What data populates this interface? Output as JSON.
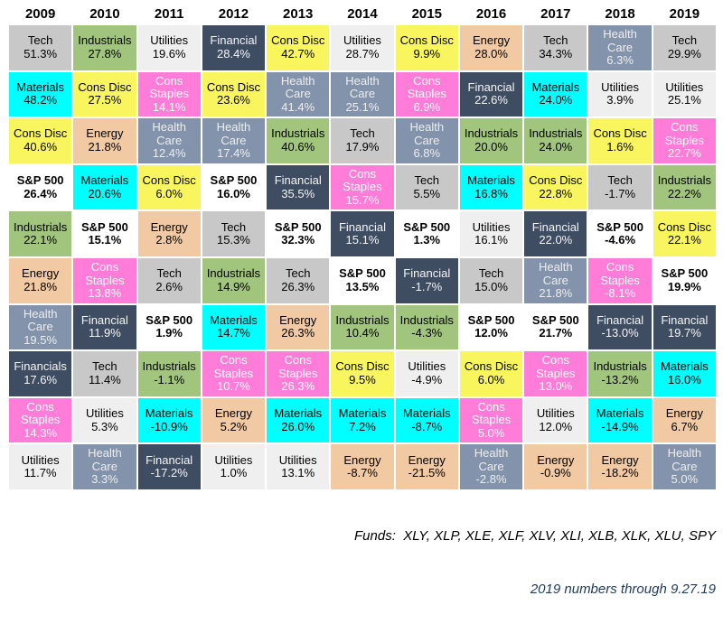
{
  "chart_data": {
    "type": "table",
    "title": "Annual S&P sector returns quilt, 2009-2019",
    "legend_position": "none",
    "years": [
      "2009",
      "2010",
      "2011",
      "2012",
      "2013",
      "2014",
      "2015",
      "2016",
      "2017",
      "2018",
      "2019"
    ],
    "rows": [
      [
        {
          "name": "Tech",
          "value": 51.3,
          "key": "tech"
        },
        {
          "name": "Industrials",
          "value": 27.8,
          "key": "industrials"
        },
        {
          "name": "Utilities",
          "value": 19.6,
          "key": "utilities"
        },
        {
          "name": "Financial",
          "value": 28.4,
          "key": "financial"
        },
        {
          "name": "Cons Disc",
          "value": 42.7,
          "key": "cons_disc"
        },
        {
          "name": "Utilities",
          "value": 28.7,
          "key": "utilities"
        },
        {
          "name": "Cons Disc",
          "value": 9.9,
          "key": "cons_disc"
        },
        {
          "name": "Energy",
          "value": 28.0,
          "key": "energy"
        },
        {
          "name": "Tech",
          "value": 34.3,
          "key": "tech"
        },
        {
          "name": "Health Care",
          "value": 6.3,
          "key": "health_care"
        },
        {
          "name": "Tech",
          "value": 29.9,
          "key": "tech"
        }
      ],
      [
        {
          "name": "Materials",
          "value": 48.2,
          "key": "materials"
        },
        {
          "name": "Cons Disc",
          "value": 27.5,
          "key": "cons_disc"
        },
        {
          "name": "Cons Staples",
          "value": 14.1,
          "key": "cons_staples"
        },
        {
          "name": "Cons Disc",
          "value": 23.6,
          "key": "cons_disc"
        },
        {
          "name": "Health Care",
          "value": 41.4,
          "key": "health_care"
        },
        {
          "name": "Health Care",
          "value": 25.1,
          "key": "health_care"
        },
        {
          "name": "Cons Staples",
          "value": 6.9,
          "key": "cons_staples"
        },
        {
          "name": "Financial",
          "value": 22.6,
          "key": "financial"
        },
        {
          "name": "Materials",
          "value": 24.0,
          "key": "materials"
        },
        {
          "name": "Utilities",
          "value": 3.9,
          "key": "utilities"
        },
        {
          "name": "Utilities",
          "value": 25.1,
          "key": "utilities"
        }
      ],
      [
        {
          "name": "Cons Disc",
          "value": 40.6,
          "key": "cons_disc"
        },
        {
          "name": "Energy",
          "value": 21.8,
          "key": "energy"
        },
        {
          "name": "Health Care",
          "value": 12.4,
          "key": "health_care"
        },
        {
          "name": "Health Care",
          "value": 17.4,
          "key": "health_care"
        },
        {
          "name": "Industrials",
          "value": 40.6,
          "key": "industrials"
        },
        {
          "name": "Tech",
          "value": 17.9,
          "key": "tech"
        },
        {
          "name": "Health Care",
          "value": 6.8,
          "key": "health_care"
        },
        {
          "name": "Industrials",
          "value": 20.0,
          "key": "industrials"
        },
        {
          "name": "Industrials",
          "value": 24.0,
          "key": "industrials"
        },
        {
          "name": "Cons Disc",
          "value": 1.6,
          "key": "cons_disc"
        },
        {
          "name": "Cons Staples",
          "value": 22.7,
          "key": "cons_staples"
        }
      ],
      [
        {
          "name": "S&P 500",
          "value": 26.4,
          "key": "sp500"
        },
        {
          "name": "Materials",
          "value": 20.6,
          "key": "materials"
        },
        {
          "name": "Cons Disc",
          "value": 6.0,
          "key": "cons_disc"
        },
        {
          "name": "S&P 500",
          "value": 16.0,
          "key": "sp500"
        },
        {
          "name": "Financial",
          "value": 35.5,
          "key": "financial"
        },
        {
          "name": "Cons Staples",
          "value": 15.7,
          "key": "cons_staples"
        },
        {
          "name": "Tech",
          "value": 5.5,
          "key": "tech"
        },
        {
          "name": "Materials",
          "value": 16.8,
          "key": "materials"
        },
        {
          "name": "Cons Disc",
          "value": 22.8,
          "key": "cons_disc"
        },
        {
          "name": "Tech",
          "value": -1.7,
          "key": "tech"
        },
        {
          "name": "Industrials",
          "value": 22.2,
          "key": "industrials"
        }
      ],
      [
        {
          "name": "Industrials",
          "value": 22.1,
          "key": "industrials"
        },
        {
          "name": "S&P 500",
          "value": 15.1,
          "key": "sp500"
        },
        {
          "name": "Energy",
          "value": 2.8,
          "key": "energy"
        },
        {
          "name": "Tech",
          "value": 15.3,
          "key": "tech"
        },
        {
          "name": "S&P 500",
          "value": 32.3,
          "key": "sp500"
        },
        {
          "name": "Financial",
          "value": 15.1,
          "key": "financial"
        },
        {
          "name": "S&P 500",
          "value": 1.3,
          "key": "sp500"
        },
        {
          "name": "Utilities",
          "value": 16.1,
          "key": "utilities"
        },
        {
          "name": "Financial",
          "value": 22.0,
          "key": "financial"
        },
        {
          "name": "S&P 500",
          "value": -4.6,
          "key": "sp500"
        },
        {
          "name": "Cons Disc",
          "value": 22.1,
          "key": "cons_disc"
        }
      ],
      [
        {
          "name": "Energy",
          "value": 21.8,
          "key": "energy"
        },
        {
          "name": "Cons Staples",
          "value": 13.8,
          "key": "cons_staples"
        },
        {
          "name": "Tech",
          "value": 2.6,
          "key": "tech"
        },
        {
          "name": "Industrials",
          "value": 14.9,
          "key": "industrials"
        },
        {
          "name": "Tech",
          "value": 26.3,
          "key": "tech"
        },
        {
          "name": "S&P 500",
          "value": 13.5,
          "key": "sp500"
        },
        {
          "name": "Financial",
          "value": -1.7,
          "key": "financial"
        },
        {
          "name": "Tech",
          "value": 15.0,
          "key": "tech"
        },
        {
          "name": "Health Care",
          "value": 21.8,
          "key": "health_care"
        },
        {
          "name": "Cons Staples",
          "value": -8.1,
          "key": "cons_staples"
        },
        {
          "name": "S&P 500",
          "value": 19.9,
          "key": "sp500"
        }
      ],
      [
        {
          "name": "Health Care",
          "value": 19.5,
          "key": "health_care"
        },
        {
          "name": "Financial",
          "value": 11.9,
          "key": "financial"
        },
        {
          "name": "S&P 500",
          "value": 1.9,
          "key": "sp500"
        },
        {
          "name": "Materials",
          "value": 14.7,
          "key": "materials"
        },
        {
          "name": "Energy",
          "value": 26.3,
          "key": "energy"
        },
        {
          "name": "Industrials",
          "value": 10.4,
          "key": "industrials"
        },
        {
          "name": "Industrials",
          "value": -4.3,
          "key": "industrials"
        },
        {
          "name": "S&P 500",
          "value": 12.0,
          "key": "sp500"
        },
        {
          "name": "S&P 500",
          "value": 21.7,
          "key": "sp500"
        },
        {
          "name": "Financial",
          "value": -13.0,
          "key": "financial"
        },
        {
          "name": "Financial",
          "value": 19.7,
          "key": "financial"
        }
      ],
      [
        {
          "name": "Financials",
          "value": 17.6,
          "key": "financial"
        },
        {
          "name": "Tech",
          "value": 11.4,
          "key": "tech"
        },
        {
          "name": "Industrials",
          "value": -1.1,
          "key": "industrials"
        },
        {
          "name": "Cons Staples",
          "value": 10.7,
          "key": "cons_staples"
        },
        {
          "name": "Cons Staples",
          "value": 26.3,
          "key": "cons_staples"
        },
        {
          "name": "Cons Disc",
          "value": 9.5,
          "key": "cons_disc"
        },
        {
          "name": "Utilities",
          "value": -4.9,
          "key": "utilities"
        },
        {
          "name": "Cons Disc",
          "value": 6.0,
          "key": "cons_disc"
        },
        {
          "name": "Cons Staples",
          "value": 13.0,
          "key": "cons_staples"
        },
        {
          "name": "Industrials",
          "value": -13.2,
          "key": "industrials"
        },
        {
          "name": "Materials",
          "value": 16.0,
          "key": "materials"
        }
      ],
      [
        {
          "name": "Cons Staples",
          "value": 14.3,
          "key": "cons_staples"
        },
        {
          "name": "Utilities",
          "value": 5.3,
          "key": "utilities"
        },
        {
          "name": "Materials",
          "value": -10.9,
          "key": "materials"
        },
        {
          "name": "Energy",
          "value": 5.2,
          "key": "energy"
        },
        {
          "name": "Materials",
          "value": 26.0,
          "key": "materials"
        },
        {
          "name": "Materials",
          "value": 7.2,
          "key": "materials"
        },
        {
          "name": "Materials",
          "value": -8.7,
          "key": "materials"
        },
        {
          "name": "Cons Staples",
          "value": 5.0,
          "key": "cons_staples"
        },
        {
          "name": "Utilities",
          "value": 12.0,
          "key": "utilities"
        },
        {
          "name": "Materials",
          "value": -14.9,
          "key": "materials"
        },
        {
          "name": "Energy",
          "value": 6.7,
          "key": "energy"
        }
      ],
      [
        {
          "name": "Utilities",
          "value": 11.7,
          "key": "utilities"
        },
        {
          "name": "Health Care",
          "value": 3.3,
          "key": "health_care"
        },
        {
          "name": "Financial",
          "value": -17.2,
          "key": "financial"
        },
        {
          "name": "Utilities",
          "value": 1.0,
          "key": "utilities"
        },
        {
          "name": "Utilities",
          "value": 13.1,
          "key": "utilities"
        },
        {
          "name": "Energy",
          "value": -8.7,
          "key": "energy"
        },
        {
          "name": "Energy",
          "value": -21.5,
          "key": "energy"
        },
        {
          "name": "Health Care",
          "value": -2.8,
          "key": "health_care"
        },
        {
          "name": "Energy",
          "value": -0.9,
          "key": "energy"
        },
        {
          "name": "Energy",
          "value": -18.2,
          "key": "energy"
        },
        {
          "name": "Health Care",
          "value": 5.0,
          "key": "health_care"
        }
      ]
    ]
  },
  "sector_styles": {
    "tech": {
      "bg": "#c8c8c8",
      "fg": "#000000",
      "bold": false
    },
    "industrials": {
      "bg": "#a2c57d",
      "fg": "#000000",
      "bold": false
    },
    "utilities": {
      "bg": "#efefef",
      "fg": "#000000",
      "bold": false
    },
    "financial": {
      "bg": "#3f4d63",
      "fg": "#f5f5f5",
      "bold": false
    },
    "cons_disc": {
      "bg": "#f8f55f",
      "fg": "#000000",
      "bold": false
    },
    "materials": {
      "bg": "#00ffff",
      "fg": "#000000",
      "bold": false
    },
    "cons_staples": {
      "bg": "#ff7cd8",
      "fg": "#ffffff",
      "bold": false
    },
    "energy": {
      "bg": "#f1c9a3",
      "fg": "#000000",
      "bold": false
    },
    "health_care": {
      "bg": "#8393ab",
      "fg": "#eeeeee",
      "bold": false
    },
    "sp500": {
      "bg": "#ffffff",
      "fg": "#000000",
      "bold": true
    }
  },
  "footer": {
    "funds_line": "Funds:  XLY, XLP, XLE, XLF, XLV, XLI, XLB, XLK, XLU, SPY",
    "note_line": "2019 numbers through 9.27.19"
  }
}
